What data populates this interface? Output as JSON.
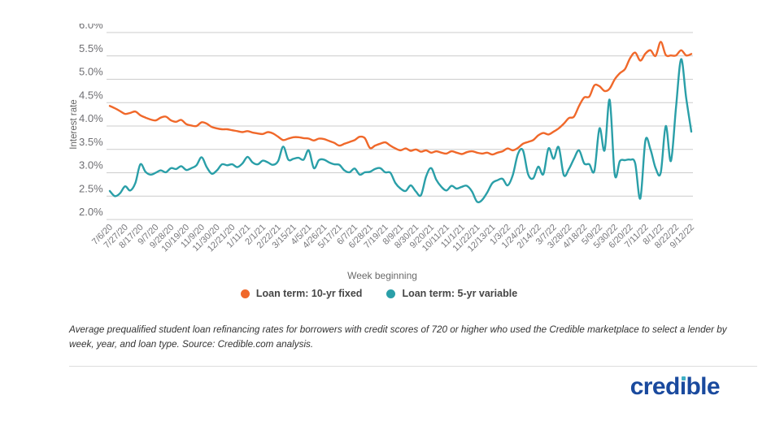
{
  "colors": {
    "fixed_line": "#f0682a",
    "variable_line": "#2a9fa8",
    "grid": "#cccccc",
    "axis_text": "#757575",
    "logo_blue": "#1a4a9e",
    "logo_dot": "#3fb0c5",
    "divider": "#dddddd"
  },
  "y_axis": {
    "title": "Interest rate",
    "tick_labels": [
      "6.0%",
      "5.5%",
      "5.0%",
      "4.5%",
      "4.0%",
      "3.5%",
      "3.0%",
      "2.5%",
      "2.0%"
    ]
  },
  "x_axis": {
    "title": "Week beginning",
    "tick_labels": [
      "7/6/20",
      "7/27/20",
      "8/17/20",
      "9/7/20",
      "9/28/20",
      "10/19/20",
      "11/9/20",
      "11/30/20",
      "12/21/20",
      "1/11/21",
      "2/1/21",
      "2/22/21",
      "3/15/21",
      "4/5/21",
      "4/26/21",
      "5/17/21",
      "6/7/21",
      "6/28/21",
      "7/19/21",
      "8/9/21",
      "8/30/21",
      "9/20/21",
      "10/11/21",
      "11/1/21",
      "11/22/21",
      "12/13/21",
      "1/3/22",
      "1/24/22",
      "2/14/22",
      "3/7/22",
      "3/28/22",
      "4/18/22",
      "5/9/22",
      "5/30/22",
      "6/20/22",
      "7/11/22",
      "8/1/22",
      "8/22/22",
      "9/12/22"
    ]
  },
  "legend": [
    {
      "label": "Loan term: 10-yr fixed",
      "color": "#f0682a"
    },
    {
      "label": "Loan term: 5-yr variable",
      "color": "#2a9fa8"
    }
  ],
  "caption": "Average prequalified student loan refinancing rates for borrowers with credit scores of 720 or higher who used the Credible marketplace to select a lender by week, year, and loan type. Source: Credible.com analysis.",
  "logo": {
    "text": "credible",
    "before_i": "cred",
    "i_glyph": "ı",
    "after_i": "ble"
  },
  "chart_data": {
    "type": "line",
    "title": "",
    "xlabel": "Week beginning",
    "ylabel": "Interest rate",
    "ylim": [
      2.0,
      6.0
    ],
    "y_tick_step": 0.5,
    "grid": true,
    "legend_position": "bottom",
    "x": [
      "7/6/20",
      "7/13/20",
      "7/20/20",
      "7/27/20",
      "8/3/20",
      "8/10/20",
      "8/17/20",
      "8/24/20",
      "8/31/20",
      "9/7/20",
      "9/14/20",
      "9/21/20",
      "9/28/20",
      "10/5/20",
      "10/12/20",
      "10/19/20",
      "10/26/20",
      "11/2/20",
      "11/9/20",
      "11/16/20",
      "11/23/20",
      "11/30/20",
      "12/7/20",
      "12/14/20",
      "12/21/20",
      "12/28/20",
      "1/4/21",
      "1/11/21",
      "1/18/21",
      "1/25/21",
      "2/1/21",
      "2/8/21",
      "2/15/21",
      "2/22/21",
      "3/1/21",
      "3/8/21",
      "3/15/21",
      "3/22/21",
      "3/29/21",
      "4/5/21",
      "4/12/21",
      "4/19/21",
      "4/26/21",
      "5/3/21",
      "5/10/21",
      "5/17/21",
      "5/24/21",
      "5/31/21",
      "6/7/21",
      "6/14/21",
      "6/21/21",
      "6/28/21",
      "7/5/21",
      "7/12/21",
      "7/19/21",
      "7/26/21",
      "8/2/21",
      "8/9/21",
      "8/16/21",
      "8/23/21",
      "8/30/21",
      "9/6/21",
      "9/13/21",
      "9/20/21",
      "9/27/21",
      "10/4/21",
      "10/11/21",
      "10/18/21",
      "10/25/21",
      "11/1/21",
      "11/8/21",
      "11/15/21",
      "11/22/21",
      "11/29/21",
      "12/6/21",
      "12/13/21",
      "12/20/21",
      "12/27/21",
      "1/3/22",
      "1/10/22",
      "1/17/22",
      "1/24/22",
      "1/31/22",
      "2/7/22",
      "2/14/22",
      "2/21/22",
      "2/28/22",
      "3/7/22",
      "3/14/22",
      "3/21/22",
      "3/28/22",
      "4/4/22",
      "4/11/22",
      "4/18/22",
      "4/25/22",
      "5/2/22",
      "5/9/22",
      "5/16/22",
      "5/23/22",
      "5/30/22",
      "6/6/22",
      "6/13/22",
      "6/20/22",
      "6/27/22",
      "7/4/22",
      "7/11/22",
      "7/18/22",
      "7/25/22",
      "8/1/22",
      "8/8/22",
      "8/15/22",
      "8/22/22",
      "8/29/22",
      "9/5/22",
      "9/12/22"
    ],
    "x_tick_every": 3,
    "series": [
      {
        "name": "Loan term: 10-yr fixed",
        "color": "#f0682a",
        "values": [
          4.43,
          4.38,
          4.32,
          4.26,
          4.28,
          4.31,
          4.23,
          4.18,
          4.14,
          4.12,
          4.18,
          4.2,
          4.12,
          4.09,
          4.13,
          4.04,
          4.01,
          4.0,
          4.08,
          4.05,
          3.98,
          3.95,
          3.93,
          3.93,
          3.91,
          3.89,
          3.87,
          3.89,
          3.86,
          3.84,
          3.83,
          3.87,
          3.84,
          3.77,
          3.7,
          3.73,
          3.76,
          3.76,
          3.74,
          3.73,
          3.69,
          3.73,
          3.72,
          3.68,
          3.64,
          3.58,
          3.62,
          3.66,
          3.7,
          3.77,
          3.74,
          3.53,
          3.58,
          3.62,
          3.65,
          3.58,
          3.52,
          3.48,
          3.52,
          3.47,
          3.5,
          3.45,
          3.48,
          3.43,
          3.46,
          3.43,
          3.41,
          3.46,
          3.43,
          3.4,
          3.44,
          3.46,
          3.43,
          3.41,
          3.43,
          3.39,
          3.43,
          3.46,
          3.52,
          3.48,
          3.53,
          3.62,
          3.66,
          3.7,
          3.8,
          3.85,
          3.82,
          3.88,
          3.95,
          4.05,
          4.17,
          4.2,
          4.43,
          4.61,
          4.63,
          4.87,
          4.85,
          4.75,
          4.8,
          5.0,
          5.13,
          5.22,
          5.45,
          5.57,
          5.4,
          5.55,
          5.62,
          5.5,
          5.8,
          5.52,
          5.51,
          5.51,
          5.62,
          5.51,
          5.54
        ]
      },
      {
        "name": "Loan term: 5-yr variable",
        "color": "#2a9fa8",
        "values": [
          2.61,
          2.5,
          2.56,
          2.71,
          2.62,
          2.78,
          3.18,
          3.02,
          2.96,
          3.0,
          3.05,
          3.01,
          3.1,
          3.08,
          3.14,
          3.06,
          3.1,
          3.16,
          3.33,
          3.12,
          2.98,
          3.05,
          3.18,
          3.16,
          3.18,
          3.12,
          3.2,
          3.34,
          3.22,
          3.18,
          3.26,
          3.22,
          3.17,
          3.25,
          3.56,
          3.28,
          3.3,
          3.32,
          3.28,
          3.48,
          3.1,
          3.27,
          3.28,
          3.22,
          3.18,
          3.17,
          3.05,
          3.01,
          3.09,
          2.96,
          3.01,
          3.02,
          3.08,
          3.1,
          3.01,
          3.0,
          2.78,
          2.66,
          2.61,
          2.73,
          2.6,
          2.52,
          2.92,
          3.1,
          2.85,
          2.7,
          2.62,
          2.72,
          2.66,
          2.7,
          2.72,
          2.6,
          2.38,
          2.42,
          2.58,
          2.78,
          2.84,
          2.87,
          2.73,
          2.95,
          3.4,
          3.48,
          2.97,
          2.88,
          3.13,
          2.97,
          3.52,
          3.3,
          3.55,
          2.95,
          3.08,
          3.3,
          3.48,
          3.2,
          3.18,
          3.04,
          3.95,
          3.48,
          4.56,
          2.96,
          3.25,
          3.27,
          3.28,
          3.2,
          2.45,
          3.69,
          3.5,
          3.1,
          3.0,
          4.0,
          3.25,
          4.4,
          5.43,
          4.6,
          3.88
        ]
      }
    ]
  }
}
